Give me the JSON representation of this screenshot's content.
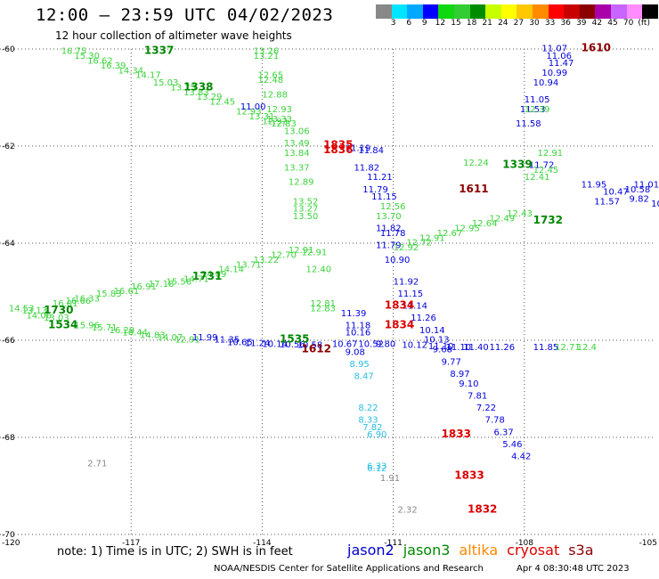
{
  "title": "12:00 – 23:59 UTC 04/02/2023",
  "subtitle": "12 hour collection of altimeter wave heights",
  "legend": {
    "unit": "(ft)",
    "colors": [
      "#888888",
      "#00e5ff",
      "#00a8ff",
      "#0000ff",
      "#0fd80f",
      "#32cd32",
      "#008c00",
      "#c8ff00",
      "#ffff00",
      "#ffc800",
      "#ff8c00",
      "#ff0000",
      "#c80000",
      "#8b0000",
      "#aa00aa",
      "#c864ff",
      "#ff8cff",
      "#000000"
    ],
    "labels": [
      "3",
      "6",
      "9",
      "12",
      "15",
      "18",
      "21",
      "24",
      "27",
      "30",
      "33",
      "36",
      "39",
      "42",
      "45",
      "70"
    ]
  },
  "lat_labels": [
    "-60",
    "-62",
    "-64",
    "-66",
    "-68",
    "-70"
  ],
  "lon_labels": [
    "-120",
    "-117",
    "-114",
    "-111",
    "-108",
    "-105"
  ],
  "satellites": [
    {
      "name": "jason2",
      "color": "#0000cc"
    },
    {
      "name": "jason3",
      "color": "#008800"
    },
    {
      "name": "altika",
      "color": "#ff8800"
    },
    {
      "name": "cryosat",
      "color": "#dd0000"
    },
    {
      "name": "s3a",
      "color": "#8b0000"
    }
  ],
  "note": "note:  1) Time is in UTC;  2) SWH is in feet",
  "credit": "NOAA/NESDIS Center for Satellite Applications and Research",
  "stamp": "Apr  4 08:30:48 UTC 2023",
  "tracks": [
    {
      "color": "#3cd33c",
      "points": [
        [
          "16.75",
          -118.6,
          -60.1
        ],
        [
          "15.30",
          -118.3,
          -60.2
        ],
        [
          "16.62",
          -118.0,
          -60.3
        ],
        [
          "16.39",
          -117.7,
          -60.4
        ],
        [
          "14.34",
          -117.3,
          -60.5
        ],
        [
          "14.17",
          -116.9,
          -60.6
        ],
        [
          "15.03",
          -116.5,
          -60.75
        ],
        [
          "13.75",
          -116.1,
          -60.85
        ],
        [
          "13.83",
          -115.8,
          -60.95
        ],
        [
          "13.29",
          -115.5,
          -61.05
        ],
        [
          "12.45",
          -115.2,
          -61.15
        ],
        [
          "12.93",
          -114.6,
          -61.35
        ],
        [
          "13.31",
          -114.3,
          -61.45
        ],
        [
          "12.92",
          -114.0,
          -61.55
        ],
        [
          "13.06",
          -113.5,
          -61.75
        ]
      ]
    },
    {
      "color": "#3cd33c",
      "points": [
        [
          "13.26",
          -114.2,
          -60.1
        ],
        [
          "13.21",
          -114.2,
          -60.2
        ],
        [
          "12.65",
          -114.1,
          -60.6
        ],
        [
          "12.48",
          -114.1,
          -60.7
        ],
        [
          "12.88",
          -114.0,
          -61.0
        ],
        [
          "12.93",
          -113.9,
          -61.3
        ],
        [
          "13.33",
          -113.9,
          -61.5
        ],
        [
          "12.83",
          -113.8,
          -61.6
        ],
        [
          "13.49",
          -113.5,
          -62.0
        ],
        [
          "13.84",
          -113.5,
          -62.2
        ],
        [
          "13.37",
          -113.5,
          -62.5
        ],
        [
          "12.89",
          -113.4,
          -62.8
        ],
        [
          "13.52",
          -113.3,
          -63.2
        ],
        [
          "13.27",
          -113.3,
          -63.35
        ],
        [
          "13.50",
          -113.3,
          -63.5
        ],
        [
          "12.91",
          -113.1,
          -64.25
        ],
        [
          "12.40",
          -113.0,
          -64.6
        ],
        [
          "12.81",
          -112.9,
          -65.3
        ],
        [
          "12.83",
          -112.9,
          -65.4
        ]
      ]
    },
    {
      "color": "#0000dd",
      "points": [
        [
          "11.00",
          -114.5,
          -61.25
        ],
        [
          "11.19",
          -112.1,
          -62.1
        ],
        [
          "11.84",
          -111.8,
          -62.15
        ],
        [
          "11.82",
          -111.9,
          -62.5
        ],
        [
          "11.21",
          -111.6,
          -62.7
        ],
        [
          "11.79",
          -111.7,
          -62.95
        ],
        [
          "11.15",
          -111.5,
          -63.1
        ],
        [
          "11.82",
          -111.4,
          -63.75
        ],
        [
          "11.78",
          -111.3,
          -63.85
        ],
        [
          "11.79",
          -111.4,
          -64.1
        ],
        [
          "10.90",
          -111.2,
          -64.4
        ],
        [
          "11.92",
          -111.0,
          -64.85
        ],
        [
          "11.15",
          -110.9,
          -65.1
        ],
        [
          "11.14",
          -110.8,
          -65.35
        ],
        [
          "11.26",
          -110.6,
          -65.6
        ],
        [
          "10.14",
          -110.4,
          -65.85
        ],
        [
          "10.13",
          -110.3,
          -66.05
        ],
        [
          "9.68",
          -110.1,
          -66.25
        ],
        [
          "9.77",
          -109.9,
          -66.5
        ],
        [
          "8.97",
          -109.7,
          -66.75
        ],
        [
          "9.10",
          -109.5,
          -66.95
        ],
        [
          "7.81",
          -109.3,
          -67.2
        ],
        [
          "7.22",
          -109.1,
          -67.45
        ],
        [
          "7.78",
          -108.9,
          -67.7
        ],
        [
          "6.37",
          -108.7,
          -67.95
        ],
        [
          "5.46",
          -108.5,
          -68.2
        ],
        [
          "4.42",
          -108.3,
          -68.45
        ]
      ]
    },
    {
      "color": "#0000dd",
      "points": [
        [
          "11.07",
          -107.6,
          -60.05
        ],
        [
          "11.06",
          -107.5,
          -60.2
        ],
        [
          "11.47",
          -107.45,
          -60.35
        ],
        [
          "10.99",
          -107.6,
          -60.55
        ],
        [
          "10.94",
          -107.8,
          -60.75
        ],
        [
          "11.05",
          -108.0,
          -61.1
        ],
        [
          "11.53",
          -108.1,
          -61.3
        ],
        [
          "11.58",
          -108.2,
          -61.6
        ],
        [
          "11.72",
          -107.9,
          -62.45
        ],
        [
          "11.95",
          -106.7,
          -62.85
        ],
        [
          "11.57",
          -106.4,
          -63.2
        ],
        [
          "10.47",
          -106.2,
          -63.0
        ],
        [
          "10.58",
          -105.7,
          -62.95
        ],
        [
          "11.01",
          -105.5,
          -62.85
        ],
        [
          "9.82",
          -105.6,
          -63.15
        ],
        [
          "10.",
          -105.1,
          -63.25
        ]
      ]
    },
    {
      "color": "#3cd33c",
      "points": [
        [
          "13.70",
          -111.4,
          -63.5
        ],
        [
          "12.56",
          -111.3,
          -63.3
        ],
        [
          "12.92",
          -111.0,
          -64.15
        ],
        [
          "12.72",
          -110.7,
          -64.05
        ],
        [
          "12.91",
          -110.4,
          -63.95
        ],
        [
          "12.67",
          -110.0,
          -63.85
        ],
        [
          "12.95",
          -109.6,
          -63.75
        ],
        [
          "12.64",
          -109.2,
          -63.65
        ],
        [
          "12.49",
          -108.8,
          -63.55
        ],
        [
          "12.43",
          -108.4,
          -63.45
        ],
        [
          "12.41",
          -108.0,
          -62.7
        ],
        [
          "12.45",
          -107.8,
          -62.55
        ],
        [
          "12.39",
          -108.0,
          -61.3
        ],
        [
          "12.91",
          -107.7,
          -62.2
        ],
        [
          "12.24",
          -109.4,
          -62.4
        ]
      ]
    },
    {
      "color": "#3cd33c",
      "points": [
        [
          "14.53",
          -119.8,
          -65.4
        ],
        [
          "13.13",
          -119.5,
          -65.45
        ],
        [
          "14.06",
          -119.4,
          -65.55
        ],
        [
          "13.03",
          -119.0,
          -65.6
        ],
        [
          "16.01",
          -118.8,
          -65.3
        ],
        [
          "16.66",
          -118.5,
          -65.25
        ],
        [
          "16.33",
          -118.3,
          -65.2
        ],
        [
          "15.83",
          -117.8,
          -65.1
        ],
        [
          "16.61",
          -117.4,
          -65.05
        ],
        [
          "16.91",
          -117.0,
          -64.95
        ],
        [
          "17.18",
          -116.6,
          -64.9
        ],
        [
          "15.56",
          -116.2,
          -64.85
        ],
        [
          "14.71",
          -115.8,
          -64.8
        ],
        [
          "14.09",
          -115.4,
          -64.7
        ],
        [
          "14.14",
          -115.0,
          -64.6
        ],
        [
          "13.71",
          -114.6,
          -64.5
        ],
        [
          "13.22",
          -114.2,
          -64.4
        ],
        [
          "12.70",
          -113.8,
          -64.3
        ],
        [
          "12.91",
          -113.4,
          -64.2
        ],
        [
          "15.96",
          -118.3,
          -65.75
        ],
        [
          "15.71",
          -117.9,
          -65.8
        ],
        [
          "16.29",
          -117.5,
          -65.85
        ],
        [
          "16.44",
          -117.2,
          -65.9
        ],
        [
          "14.83",
          -116.8,
          -65.95
        ],
        [
          "14.07",
          -116.4,
          -66.0
        ],
        [
          "12.91",
          -116.0,
          -66.05
        ]
      ]
    },
    {
      "color": "#0000dd",
      "points": [
        [
          "11.99",
          -115.6,
          -66.0
        ],
        [
          "11.35",
          -115.1,
          -66.05
        ],
        [
          "10.65",
          -114.8,
          -66.1
        ],
        [
          "11.24",
          -114.4,
          -66.12
        ],
        [
          "10.14",
          -114.0,
          -66.14
        ],
        [
          "10.56",
          -113.6,
          -66.15
        ],
        [
          "10.58",
          -113.2,
          -66.16
        ],
        [
          "10.67",
          -112.4,
          -66.14
        ],
        [
          "10.52",
          -111.8,
          -66.14
        ],
        [
          "9.80",
          -111.4,
          -66.14
        ],
        [
          "10.12",
          -110.8,
          -66.16
        ],
        [
          "11.10",
          -110.2,
          -66.18
        ],
        [
          "11.10",
          -109.8,
          -66.2
        ],
        [
          "11.40",
          -109.4,
          -66.2
        ],
        [
          "11.26",
          -108.8,
          -66.2
        ],
        [
          "11.85",
          -107.8,
          -66.2
        ]
      ]
    },
    {
      "color": "#3cd33c",
      "points": [
        [
          "12.71",
          -107.3,
          -66.2
        ],
        [
          "12.4",
          -106.8,
          -66.2
        ]
      ]
    },
    {
      "color": "#0000dd",
      "points": [
        [
          "11.39",
          -112.2,
          -65.5
        ],
        [
          "11.18",
          -112.1,
          -65.75
        ],
        [
          "10.16",
          -112.1,
          -65.9
        ],
        [
          "9.08",
          -112.1,
          -66.3
        ]
      ]
    },
    {
      "color": "#2bbde0",
      "points": [
        [
          "8.95",
          -112.0,
          -66.55
        ],
        [
          "8.47",
          -111.9,
          -66.8
        ],
        [
          "8.22",
          -111.8,
          -67.45
        ],
        [
          "8.33",
          -111.8,
          -67.7
        ],
        [
          "7.82",
          -111.7,
          -67.85
        ],
        [
          "6.90",
          -111.6,
          -68.0
        ],
        [
          "6.33",
          -111.6,
          -68.65
        ],
        [
          "6.12",
          -111.6,
          -68.7
        ]
      ]
    },
    {
      "color": "#888888",
      "points": [
        [
          "2.71",
          -118.0,
          -68.6
        ],
        [
          "1.91",
          -111.3,
          -68.9
        ],
        [
          "2.32",
          -110.9,
          -69.55
        ]
      ]
    }
  ],
  "time_marks": [
    {
      "text": "1337",
      "color": "#008800",
      "lon": -116.7,
      "lat": -60.1
    },
    {
      "text": "1338",
      "color": "#008800",
      "lon": -115.8,
      "lat": -60.85
    },
    {
      "text": "1339",
      "color": "#008800",
      "lon": -108.5,
      "lat": -62.45
    },
    {
      "text": "1732",
      "color": "#008800",
      "lon": -107.8,
      "lat": -63.6
    },
    {
      "text": "1731",
      "color": "#008800",
      "lon": -115.6,
      "lat": -64.75
    },
    {
      "text": "1730",
      "color": "#008800",
      "lon": -119.0,
      "lat": -65.45
    },
    {
      "text": "1534",
      "color": "#008800",
      "lon": -118.9,
      "lat": -65.75
    },
    {
      "text": "1535",
      "color": "#008800",
      "lon": -113.6,
      "lat": -66.05
    },
    {
      "text": "1610",
      "color": "#8b0000",
      "lon": -106.7,
      "lat": -60.05
    },
    {
      "text": "1611",
      "color": "#8b0000",
      "lon": -109.5,
      "lat": -62.95
    },
    {
      "text": "1612",
      "color": "#8b0000",
      "lon": -113.1,
      "lat": -66.25
    },
    {
      "text": "1835",
      "color": "#dd0000",
      "lon": -112.6,
      "lat": -62.05
    },
    {
      "text": "1836",
      "color": "#dd0000",
      "lon": -112.6,
      "lat": -62.15
    },
    {
      "text": "1834",
      "color": "#dd0000",
      "lon": -111.2,
      "lat": -65.35
    },
    {
      "text": "1834",
      "color": "#dd0000",
      "lon": -111.2,
      "lat": -65.75
    },
    {
      "text": "1833",
      "color": "#dd0000",
      "lon": -109.9,
      "lat": -68.0
    },
    {
      "text": "1833",
      "color": "#dd0000",
      "lon": -109.6,
      "lat": -68.85
    },
    {
      "text": "1832",
      "color": "#dd0000",
      "lon": -109.3,
      "lat": -69.55
    }
  ]
}
